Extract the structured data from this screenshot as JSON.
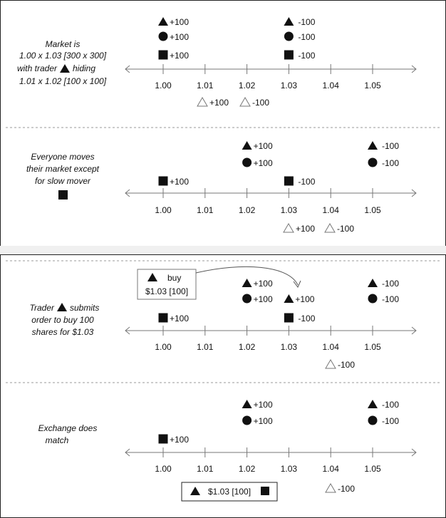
{
  "axis": {
    "ticks": [
      "1.00",
      "1.01",
      "1.02",
      "1.03",
      "1.04",
      "1.05"
    ]
  },
  "scenarios": [
    {
      "caption": [
        "Market is",
        "1.00 x 1.03 [300 x 300]",
        "with trader",
        "hiding",
        "1.01 x 1.02 [100 x 100]"
      ],
      "bids_filled": [
        {
          "shape": "triangle",
          "price": "1.00",
          "qty": "+100"
        },
        {
          "shape": "circle",
          "price": "1.00",
          "qty": "+100"
        },
        {
          "shape": "square",
          "price": "1.00",
          "qty": "+100"
        }
      ],
      "asks_filled": [
        {
          "shape": "triangle",
          "price": "1.03",
          "qty": "-100"
        },
        {
          "shape": "circle",
          "price": "1.03",
          "qty": "-100"
        },
        {
          "shape": "square",
          "price": "1.03",
          "qty": "-100"
        }
      ],
      "hidden": [
        {
          "price": "1.01",
          "qty": "+100"
        },
        {
          "price": "1.02",
          "qty": "-100"
        }
      ]
    },
    {
      "caption": [
        "Everyone moves",
        "their market except",
        "for slow mover"
      ],
      "orders": [
        {
          "shape": "triangle",
          "price": "1.02",
          "qty": "+100"
        },
        {
          "shape": "circle",
          "price": "1.02",
          "qty": "+100"
        },
        {
          "shape": "square",
          "price": "1.00",
          "qty": "+100"
        },
        {
          "shape": "triangle",
          "price": "1.05",
          "qty": "-100"
        },
        {
          "shape": "circle",
          "price": "1.05",
          "qty": "-100"
        },
        {
          "shape": "square",
          "price": "1.03",
          "qty": "-100"
        }
      ],
      "hidden": [
        {
          "price": "1.03",
          "qty": "+100"
        },
        {
          "price": "1.04",
          "qty": "-100"
        }
      ]
    },
    {
      "caption": [
        "Trader",
        "submits",
        "order to buy 100",
        "shares for $1.03"
      ],
      "order_box": {
        "line1": "buy",
        "line2": "$1.03 [100]"
      },
      "orders": [
        {
          "shape": "triangle",
          "price": "1.02",
          "qty": "+100"
        },
        {
          "shape": "circle",
          "price": "1.02",
          "qty": "+100"
        },
        {
          "shape": "triangle",
          "price": "1.03",
          "qty": "+100"
        },
        {
          "shape": "square",
          "price": "1.00",
          "qty": "+100"
        },
        {
          "shape": "triangle",
          "price": "1.05",
          "qty": "-100"
        },
        {
          "shape": "circle",
          "price": "1.05",
          "qty": "-100"
        },
        {
          "shape": "square",
          "price": "1.03",
          "qty": "-100"
        }
      ],
      "hidden": [
        {
          "price": "1.04",
          "qty": "-100"
        }
      ]
    },
    {
      "caption": [
        "Exchange does",
        "match"
      ],
      "orders": [
        {
          "shape": "triangle",
          "price": "1.02",
          "qty": "+100"
        },
        {
          "shape": "circle",
          "price": "1.02",
          "qty": "+100"
        },
        {
          "shape": "square",
          "price": "1.00",
          "qty": "+100"
        },
        {
          "shape": "triangle",
          "price": "1.05",
          "qty": "-100"
        },
        {
          "shape": "circle",
          "price": "1.05",
          "qty": "-100"
        }
      ],
      "hidden": [
        {
          "price": "1.04",
          "qty": "-100"
        }
      ],
      "match_box": {
        "text": "$1.03 [100]"
      }
    }
  ]
}
